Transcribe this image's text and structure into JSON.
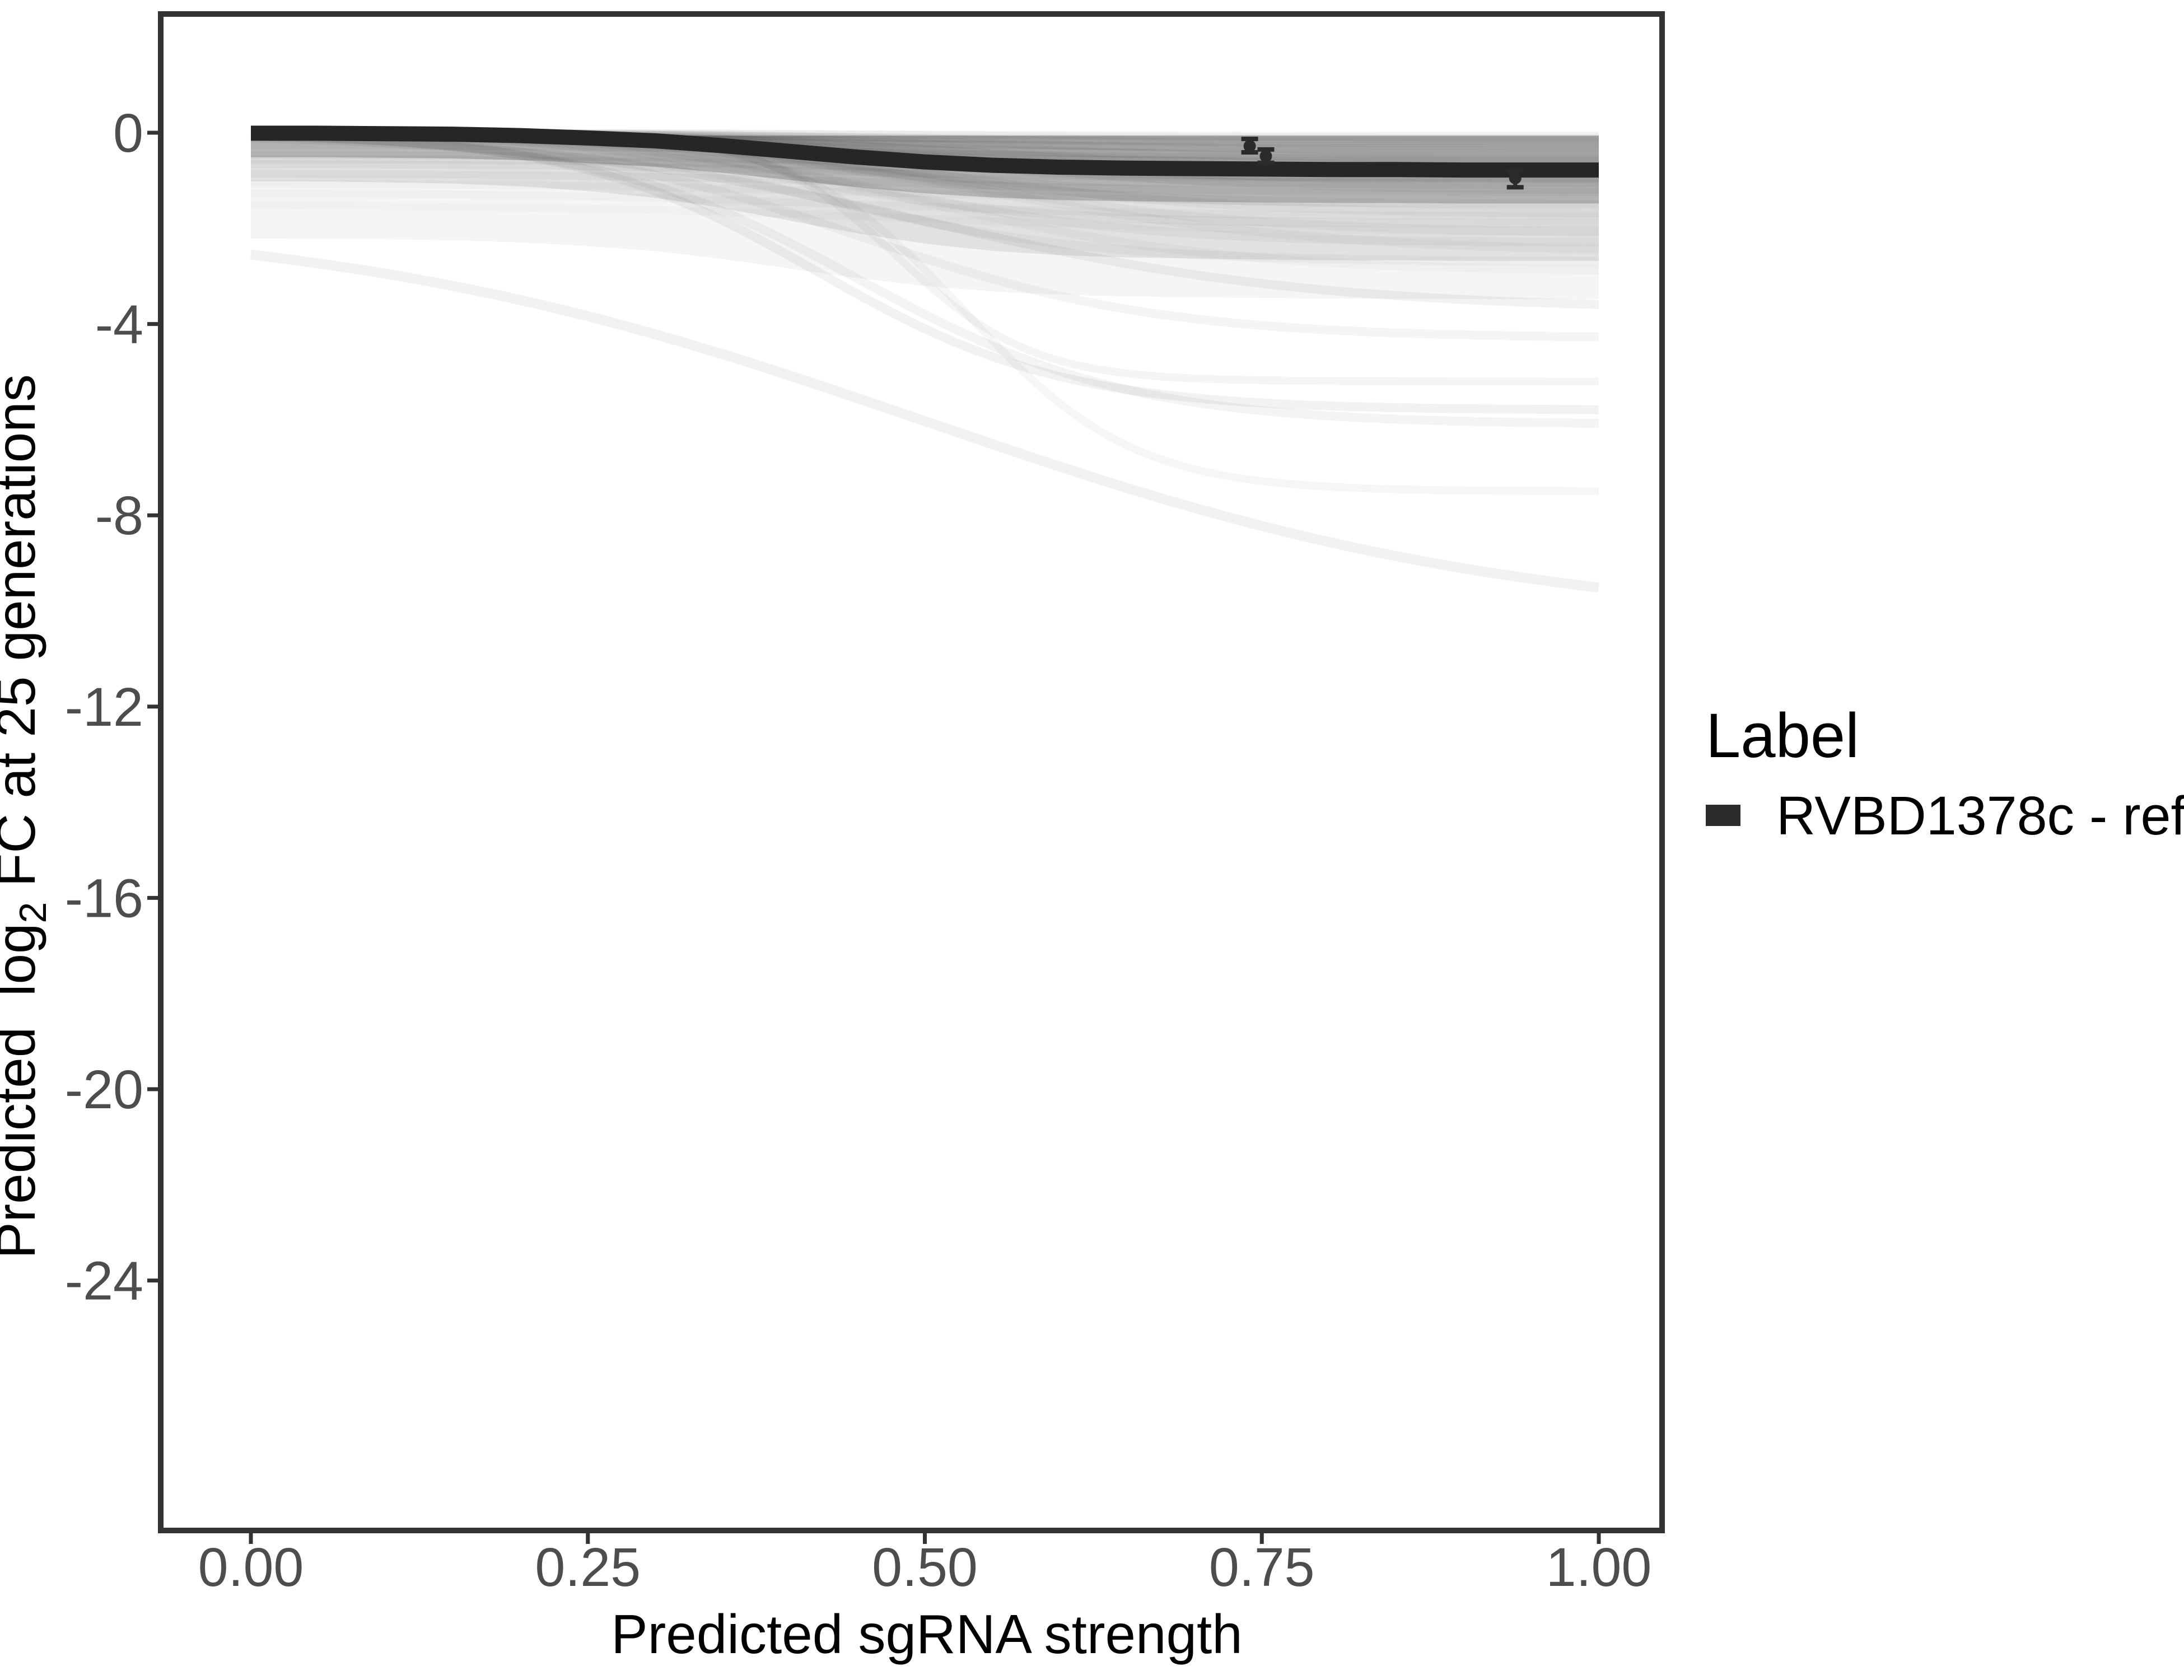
{
  "figure": {
    "background": "#ffffff",
    "axis_text_color": "#4d4d4d",
    "axis_title_color": "#000000",
    "panel_border_color": "#333333",
    "tick_color": "#333333",
    "reference_line_color": "#262626",
    "point_color": "#2b2b2b",
    "ensemble_line_color": "#000000"
  },
  "chart_data": {
    "type": "line",
    "title": "",
    "xlabel": "Predicted sgRNA strength",
    "ylabel_plain": "Predicted log2 FC at 25 generations",
    "ylabel_parts": {
      "prefix": "Predicted  log",
      "sub": "2",
      "suffix": " FC at 25 generations"
    },
    "x_tick_labels": [
      "0.00",
      "0.25",
      "0.50",
      "0.75",
      "1.00"
    ],
    "x_tick_values": [
      0,
      0.25,
      0.5,
      0.75,
      1
    ],
    "y_tick_labels": [
      "0",
      "-4",
      "-8",
      "-12",
      "-16",
      "-20",
      "-24"
    ],
    "y_tick_values": [
      0,
      -4,
      -8,
      -12,
      -16,
      -20,
      -24
    ],
    "xlim": [
      0,
      1
    ],
    "ylim": [
      -29,
      2
    ],
    "grid": false,
    "legend": {
      "title": "Label",
      "position": "right",
      "items": [
        {
          "label": "RVBD1378c - ref",
          "swatch_color": "#2b2b2b"
        }
      ]
    },
    "series": [
      {
        "name": "RVBD1378c - ref",
        "role": "reference-fit",
        "color": "#262626",
        "stroke_width": 27,
        "x": [
          0,
          0.05,
          0.1,
          0.15,
          0.2,
          0.25,
          0.3,
          0.35,
          0.4,
          0.45,
          0.5,
          0.55,
          0.6,
          0.65,
          0.7,
          0.75,
          0.8,
          0.85,
          0.9,
          0.95,
          1.0
        ],
        "y": [
          -0.01,
          -0.01,
          -0.02,
          -0.03,
          -0.06,
          -0.11,
          -0.17,
          -0.27,
          -0.39,
          -0.51,
          -0.61,
          -0.68,
          -0.72,
          -0.74,
          -0.75,
          -0.76,
          -0.77,
          -0.77,
          -0.78,
          -0.78,
          -0.78
        ]
      }
    ],
    "points": [
      {
        "x": 0.741,
        "y": -0.28,
        "ymin": -0.41,
        "ymax": -0.13
      },
      {
        "x": 0.753,
        "y": -0.49,
        "ymin": -0.63,
        "ymax": -0.35
      },
      {
        "x": 0.938,
        "y": -0.95,
        "ymin": -1.14,
        "ymax": -0.8
      }
    ],
    "band_top_cap": -0.06,
    "band_layers_format": "[offset_below_line_at_x0, extra_offset_at_x1, opacity]",
    "band_layers": [
      [
        0.5,
        0.2,
        0.18
      ],
      [
        1.0,
        0.9,
        0.08
      ],
      [
        2.2,
        0.5,
        0.04
      ]
    ],
    "background_curves_format": "[start_offset, depth, midpoint_x, steepness, opacity, stroke_width]",
    "background_curves": [
      [
        0,
        0.06,
        0.45,
        10,
        0.04,
        14
      ],
      [
        0,
        0.1,
        0.5,
        9,
        0.04,
        14
      ],
      [
        0,
        0.13,
        0.38,
        11,
        0.04,
        14
      ],
      [
        0,
        0.18,
        0.42,
        9,
        0.04,
        14
      ],
      [
        0,
        0.22,
        0.48,
        10,
        0.04,
        14
      ],
      [
        0,
        0.28,
        0.36,
        12,
        0.04,
        14
      ],
      [
        0,
        0.33,
        0.44,
        10,
        0.04,
        14
      ],
      [
        0,
        0.38,
        0.52,
        9,
        0.04,
        14
      ],
      [
        0,
        0.45,
        0.4,
        12,
        0.035,
        16
      ],
      [
        0,
        0.5,
        0.46,
        10,
        0.035,
        16
      ],
      [
        0,
        0.55,
        0.52,
        9,
        0.035,
        16
      ],
      [
        0,
        0.6,
        0.38,
        13,
        0.035,
        16
      ],
      [
        0,
        0.65,
        0.44,
        11,
        0.035,
        16
      ],
      [
        0,
        0.7,
        0.5,
        9,
        0.035,
        16
      ],
      [
        0,
        0.75,
        0.42,
        12,
        0.035,
        16
      ],
      [
        0,
        0.8,
        0.47,
        10,
        0.035,
        16
      ],
      [
        0,
        0.85,
        0.54,
        8,
        0.035,
        16
      ],
      [
        0,
        0.9,
        0.4,
        12,
        0.035,
        16
      ],
      [
        0,
        0.95,
        0.45,
        10,
        0.035,
        16
      ],
      [
        0,
        1.0,
        0.5,
        9,
        0.035,
        16
      ],
      [
        0,
        1.05,
        0.36,
        13,
        0.03,
        16
      ],
      [
        0,
        1.1,
        0.48,
        10,
        0.03,
        16
      ],
      [
        0,
        1.2,
        0.52,
        9,
        0.03,
        16
      ],
      [
        0,
        1.3,
        0.44,
        11,
        0.03,
        16
      ],
      [
        0.25,
        0.3,
        0.45,
        8,
        0.035,
        14
      ],
      [
        0.45,
        0.35,
        0.5,
        7,
        0.035,
        14
      ],
      [
        0.65,
        0.3,
        0.42,
        9,
        0.03,
        14
      ],
      [
        0.85,
        0.4,
        0.48,
        8,
        0.03,
        14
      ],
      [
        1.05,
        0.45,
        0.5,
        7,
        0.025,
        14
      ],
      [
        1.25,
        0.5,
        0.45,
        8,
        0.025,
        14
      ],
      [
        1.5,
        0.6,
        0.5,
        7,
        0.02,
        14
      ],
      [
        0.55,
        0.25,
        0.4,
        10,
        0.035,
        14
      ],
      [
        0,
        1.5,
        0.45,
        10,
        0.04,
        16
      ],
      [
        0,
        1.7,
        0.5,
        9,
        0.035,
        16
      ],
      [
        0,
        1.9,
        0.4,
        11,
        0.035,
        16
      ],
      [
        0,
        2.1,
        0.52,
        9,
        0.03,
        16
      ],
      [
        0,
        2.3,
        0.46,
        10,
        0.03,
        16
      ],
      [
        0,
        2.5,
        0.55,
        8,
        0.028,
        16
      ],
      [
        0,
        2.7,
        0.42,
        10,
        0.028,
        16
      ],
      [
        0,
        2.9,
        0.5,
        9,
        0.025,
        16
      ],
      [
        0,
        3.7,
        0.5,
        7,
        0.05,
        16
      ],
      [
        0,
        4.3,
        0.45,
        9,
        0.04,
        16
      ],
      [
        0,
        5.8,
        0.42,
        11,
        0.05,
        16
      ],
      [
        0,
        6.1,
        0.45,
        10,
        0.045,
        16
      ],
      [
        0,
        5.2,
        0.48,
        20,
        0.04,
        14
      ],
      [
        0,
        7.5,
        0.53,
        16,
        0.035,
        14
      ],
      [
        1.73,
        8.6,
        0.5,
        4.5,
        0.05,
        18
      ]
    ]
  }
}
